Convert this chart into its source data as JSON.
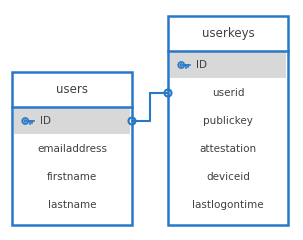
{
  "bg_color": "#ffffff",
  "border_color": "#2878C8",
  "pk_row_bg": "#d8d8d8",
  "text_color": "#404040",
  "key_color": "#2878C8",
  "connector_color": "#2878C8",
  "font_size": 7.5,
  "header_font_size": 8.5,
  "tables": [
    {
      "name": "users",
      "fields": [
        {
          "name": "ID",
          "is_pk": true
        },
        {
          "name": "emailaddress",
          "is_pk": false
        },
        {
          "name": "firstname",
          "is_pk": false
        },
        {
          "name": "lastname",
          "is_pk": false
        }
      ]
    },
    {
      "name": "userkeys",
      "fields": [
        {
          "name": "ID",
          "is_pk": true
        },
        {
          "name": "userid",
          "is_pk": false
        },
        {
          "name": "publickey",
          "is_pk": false
        },
        {
          "name": "attestation",
          "is_pk": false
        },
        {
          "name": "deviceid",
          "is_pk": false
        },
        {
          "name": "lastlogontime",
          "is_pk": false
        }
      ]
    }
  ]
}
